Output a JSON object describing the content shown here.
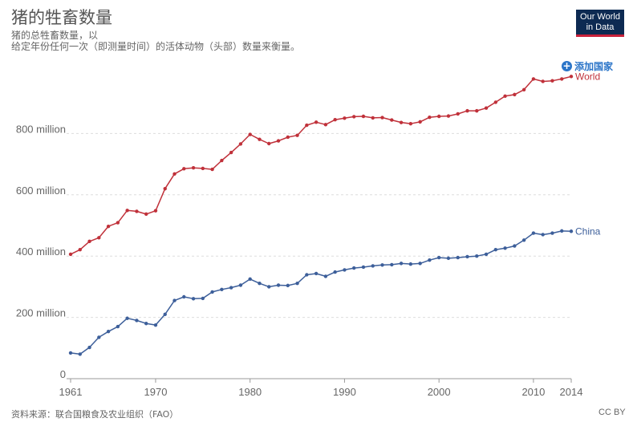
{
  "header": {
    "title": "猪的牲畜数量",
    "subtitle_line1": "猪的总牲畜数量，以",
    "subtitle_line2": "给定年份任何一次（即测量时间）的活体动物（头部）数量来衡量。",
    "logo_line1": "Our World",
    "logo_line2": "in Data",
    "add_country": "添加国家"
  },
  "footer": {
    "source": "资料来源：联合国粮食及农业组织（FAO）",
    "license": "CC BY"
  },
  "colors": {
    "world": "#c0313a",
    "china": "#3d5f9a",
    "grid": "#dddddd",
    "axis": "#999999"
  },
  "chart_data": {
    "type": "line",
    "title": "猪的牲畜数量",
    "xlabel": "",
    "ylabel": "",
    "xlim": [
      1961,
      2014
    ],
    "ylim": [
      0,
      1000000000
    ],
    "x_ticks": [
      "1961",
      "1970",
      "1980",
      "1990",
      "2000",
      "2010",
      "2014"
    ],
    "y_ticks": [
      "0",
      "200 million",
      "400 million",
      "600 million",
      "800 million"
    ],
    "x": [
      1961,
      1962,
      1963,
      1964,
      1965,
      1966,
      1967,
      1968,
      1969,
      1970,
      1971,
      1972,
      1973,
      1974,
      1975,
      1976,
      1977,
      1978,
      1979,
      1980,
      1981,
      1982,
      1983,
      1984,
      1985,
      1986,
      1987,
      1988,
      1989,
      1990,
      1991,
      1992,
      1993,
      1994,
      1995,
      1996,
      1997,
      1998,
      1999,
      2000,
      2001,
      2002,
      2003,
      2004,
      2005,
      2006,
      2007,
      2008,
      2009,
      2010,
      2011,
      2012,
      2013,
      2014
    ],
    "series": [
      {
        "name": "World",
        "values": [
          406000000,
          421000000,
          448000000,
          460000000,
          497000000,
          509000000,
          549000000,
          546000000,
          537000000,
          548000000,
          620000000,
          668000000,
          685000000,
          688000000,
          686000000,
          683000000,
          712000000,
          738000000,
          766000000,
          797000000,
          781000000,
          767000000,
          776000000,
          788000000,
          794000000,
          827000000,
          837000000,
          829000000,
          845000000,
          850000000,
          855000000,
          856000000,
          851000000,
          852000000,
          844000000,
          836000000,
          832000000,
          838000000,
          853000000,
          856000000,
          857000000,
          864000000,
          874000000,
          874000000,
          883000000,
          902000000,
          922000000,
          927000000,
          943000000,
          978000000,
          970000000,
          972000000,
          978000000,
          986000000
        ]
      },
      {
        "name": "China",
        "values": [
          84000000,
          80000000,
          102000000,
          135000000,
          154000000,
          170000000,
          197000000,
          190000000,
          180000000,
          175000000,
          210000000,
          255000000,
          267000000,
          261000000,
          262000000,
          283000000,
          291000000,
          297000000,
          305000000,
          325000000,
          311000000,
          300000000,
          305000000,
          304000000,
          311000000,
          339000000,
          343000000,
          334000000,
          348000000,
          355000000,
          361000000,
          364000000,
          368000000,
          371000000,
          372000000,
          376000000,
          374000000,
          376000000,
          387000000,
          395000000,
          393000000,
          395000000,
          398000000,
          400000000,
          406000000,
          421000000,
          426000000,
          433000000,
          452000000,
          475000000,
          470000000,
          475000000,
          482000000,
          481000000
        ]
      }
    ],
    "legend": "inline labels at line ends",
    "grid": true
  }
}
